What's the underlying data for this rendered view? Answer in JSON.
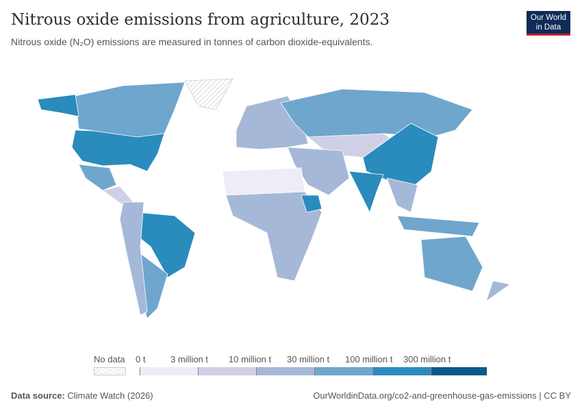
{
  "title": "Nitrous oxide emissions from agriculture, 2023",
  "subtitle": "Nitrous oxide (N₂O) emissions are measured in tonnes of carbon dioxide-equivalents.",
  "logo": {
    "line1": "Our World",
    "line2": "in Data"
  },
  "legend": {
    "no_data": "No data",
    "ticks": [
      "0 t",
      "3 million t",
      "10 million t",
      "30 million t",
      "100 million t",
      "300 million t"
    ],
    "colors": [
      "#eeedf5",
      "#cfd0e6",
      "#a5b8d8",
      "#6fa6cd",
      "#2a8bbd",
      "#0a5a8c"
    ],
    "no_data_color": "#e6e6e6"
  },
  "regions": [
    {
      "name": "United States",
      "bin": 4
    },
    {
      "name": "Canada",
      "bin": 3
    },
    {
      "name": "Alaska",
      "bin": 4
    },
    {
      "name": "Mexico",
      "bin": 3
    },
    {
      "name": "Central America",
      "bin": 1
    },
    {
      "name": "Brazil",
      "bin": 4
    },
    {
      "name": "Argentina",
      "bin": 3
    },
    {
      "name": "Andean South America",
      "bin": 2
    },
    {
      "name": "Europe",
      "bin": 2
    },
    {
      "name": "Russia",
      "bin": 3
    },
    {
      "name": "Central Asia",
      "bin": 1
    },
    {
      "name": "China",
      "bin": 4
    },
    {
      "name": "India",
      "bin": 4
    },
    {
      "name": "Middle East",
      "bin": 2
    },
    {
      "name": "North Africa",
      "bin": 0
    },
    {
      "name": "Sub-Saharan Africa",
      "bin": 2
    },
    {
      "name": "Ethiopia",
      "bin": 4
    },
    {
      "name": "Southeast Asia",
      "bin": 2
    },
    {
      "name": "Indonesia",
      "bin": 3
    },
    {
      "name": "Australia",
      "bin": 3
    },
    {
      "name": "New Zealand",
      "bin": 2
    },
    {
      "name": "Greenland",
      "bin": -1
    }
  ],
  "footer": {
    "source_label": "Data source:",
    "source": "Climate Watch (2026)",
    "url": "OurWorldinData.org/co2-and-greenhouse-gas-emissions | CC BY"
  }
}
